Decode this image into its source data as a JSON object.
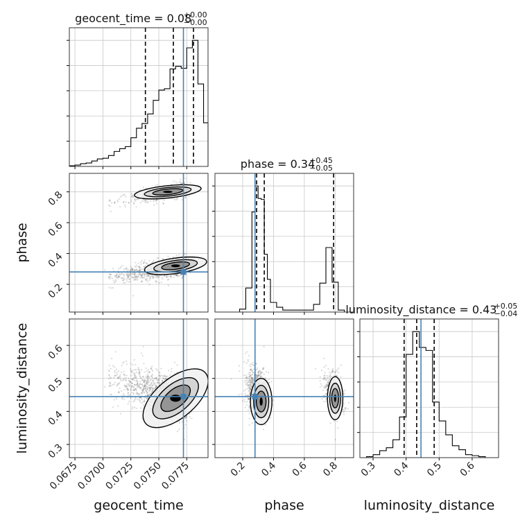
{
  "chart_data": {
    "type": "corner",
    "parameters": [
      "geocent_time",
      "phase",
      "luminosity_distance"
    ],
    "truths": {
      "geocent_time": 0.0772,
      "phase": 0.28,
      "luminosity_distance": 0.445
    },
    "colors": {
      "truth": "#4682b4",
      "hist": "#000000",
      "grid": "#c8c8c8",
      "scatter": "#333333"
    },
    "titles": [
      {
        "param": "geocent_time",
        "main": "geocent_time = 0.08",
        "upper": "+0.00",
        "lower": "−0.00"
      },
      {
        "param": "phase",
        "main": "phase = 0.34",
        "upper": "+0.45",
        "lower": "−0.05"
      },
      {
        "param": "luminosity_distance",
        "main": "luminosity_distance = 0.43",
        "upper": "+0.05",
        "lower": "−0.04"
      }
    ],
    "axes": {
      "geocent_time": {
        "range": [
          0.067,
          0.0794
        ],
        "ticks": [
          0.0675,
          0.07,
          0.0725,
          0.075,
          0.0775
        ],
        "tick_labels": [
          "0.0675",
          "0.0700",
          "0.0725",
          "0.0750",
          "0.0775"
        ],
        "label": "geocent_time"
      },
      "phase": {
        "range": [
          0.02,
          0.92
        ],
        "ticks": [
          0.2,
          0.4,
          0.6,
          0.8
        ],
        "tick_labels": [
          "0.2",
          "0.4",
          "0.6",
          "0.8"
        ],
        "label": "phase"
      },
      "luminosity_distance": {
        "range": [
          0.26,
          0.68
        ],
        "ticks": [
          0.3,
          0.4,
          0.5,
          0.6
        ],
        "tick_labels": [
          "0.3",
          "0.4",
          "0.5",
          "0.6"
        ],
        "label": "luminosity_distance"
      }
    },
    "histograms": {
      "geocent_time": {
        "edges": [
          0.067,
          0.0675,
          0.068,
          0.0685,
          0.069,
          0.0695,
          0.07,
          0.0705,
          0.071,
          0.0715,
          0.072,
          0.0725,
          0.073,
          0.0735,
          0.074,
          0.0745,
          0.075,
          0.0755,
          0.076,
          0.0765,
          0.077,
          0.0775,
          0.078,
          0.0785,
          0.079,
          0.0794
        ],
        "counts": [
          1,
          2,
          4,
          5,
          8,
          11,
          12,
          16,
          22,
          26,
          29,
          42,
          56,
          63,
          77,
          97,
          112,
          114,
          143,
          147,
          144,
          174,
          185,
          121,
          64
        ],
        "quantiles": [
          0.0738,
          0.0763,
          0.0781
        ]
      },
      "phase": {
        "edges": [
          0.02,
          0.06,
          0.1,
          0.14,
          0.18,
          0.22,
          0.26,
          0.28,
          0.3,
          0.32,
          0.34,
          0.36,
          0.38,
          0.42,
          0.46,
          0.5,
          0.54,
          0.58,
          0.62,
          0.66,
          0.7,
          0.74,
          0.78,
          0.82,
          0.86,
          0.92
        ],
        "counts": [
          0,
          0,
          0,
          0,
          3,
          25,
          104,
          131,
          118,
          117,
          60,
          34,
          10,
          5,
          2,
          2,
          2,
          2,
          2,
          8,
          30,
          67,
          31,
          2,
          0
        ],
        "quantiles": [
          0.29,
          0.34,
          0.79
        ]
      },
      "luminosity_distance": {
        "edges": [
          0.26,
          0.28,
          0.3,
          0.32,
          0.34,
          0.36,
          0.38,
          0.4,
          0.42,
          0.44,
          0.46,
          0.48,
          0.5,
          0.52,
          0.54,
          0.56,
          0.58,
          0.6,
          0.62,
          0.64,
          0.66,
          0.68
        ],
        "counts": [
          0,
          1,
          3,
          7,
          10,
          18,
          41,
          104,
          127,
          111,
          108,
          56,
          37,
          23,
          12,
          8,
          3,
          2,
          1,
          0,
          0
        ],
        "quantiles": [
          0.394,
          0.432,
          0.485
        ]
      }
    }
  }
}
